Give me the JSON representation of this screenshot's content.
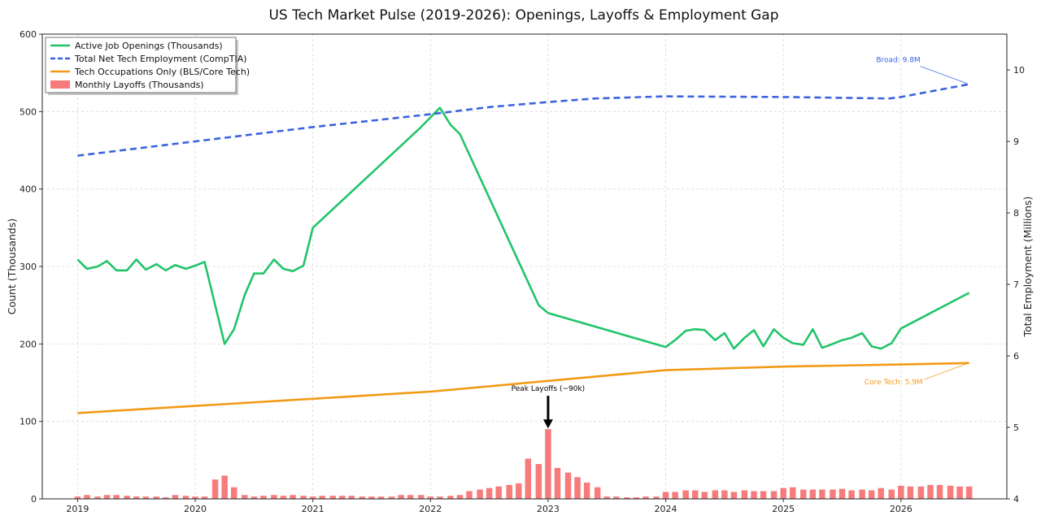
{
  "chart_data": {
    "type": "line",
    "title": "US Tech Market Pulse (2019-2026): Openings, Layoffs & Employment Gap",
    "ylabel": "Count (Thousands)",
    "ylabel_right": "Total Employment (Millions)",
    "ylim": [
      0,
      600
    ],
    "ylim_right": [
      4,
      10.5
    ],
    "xlim": [
      2018.7,
      2026.9
    ],
    "x_ticks": [
      "2019",
      "2020",
      "2021",
      "2022",
      "2023",
      "2024",
      "2025",
      "2026"
    ],
    "y_ticks": [
      "0",
      "100",
      "200",
      "300",
      "400",
      "500",
      "600"
    ],
    "y_ticks_right": [
      "4",
      "5",
      "6",
      "7",
      "8",
      "9",
      "10"
    ],
    "grid": true,
    "legend_position": "top-left",
    "colors": {
      "openings": "#22c46a",
      "net_employment": "#3b63e0",
      "core_tech": "#f29a16",
      "layoffs": "#f77b7b"
    },
    "series": [
      {
        "name": "Active Job Openings (Thousands)",
        "axis": "left",
        "style": "solid",
        "points": [
          [
            2019.0,
            309
          ],
          [
            2019.08,
            297
          ],
          [
            2019.17,
            300
          ],
          [
            2019.25,
            307
          ],
          [
            2019.33,
            295
          ],
          [
            2019.42,
            295
          ],
          [
            2019.5,
            309
          ],
          [
            2019.58,
            296
          ],
          [
            2019.67,
            303
          ],
          [
            2019.75,
            295
          ],
          [
            2019.83,
            302
          ],
          [
            2019.92,
            297
          ],
          [
            2020.0,
            301
          ],
          [
            2020.08,
            306
          ],
          [
            2020.25,
            200
          ],
          [
            2020.33,
            219
          ],
          [
            2020.42,
            263
          ],
          [
            2020.5,
            291
          ],
          [
            2020.58,
            291
          ],
          [
            2020.67,
            309
          ],
          [
            2020.75,
            297
          ],
          [
            2020.83,
            294
          ],
          [
            2020.92,
            301
          ],
          [
            2021.0,
            350
          ],
          [
            2021.92,
            480
          ],
          [
            2022.08,
            505
          ],
          [
            2022.17,
            483
          ],
          [
            2022.25,
            471
          ],
          [
            2022.92,
            250
          ],
          [
            2023.0,
            240
          ],
          [
            2024.0,
            196
          ],
          [
            2024.08,
            205
          ],
          [
            2024.17,
            217
          ],
          [
            2024.25,
            219
          ],
          [
            2024.33,
            218
          ],
          [
            2024.42,
            205
          ],
          [
            2024.5,
            214
          ],
          [
            2024.58,
            194
          ],
          [
            2024.67,
            208
          ],
          [
            2024.75,
            218
          ],
          [
            2024.83,
            197
          ],
          [
            2024.92,
            219
          ],
          [
            2025.0,
            208
          ],
          [
            2025.08,
            201
          ],
          [
            2025.17,
            199
          ],
          [
            2025.25,
            219
          ],
          [
            2025.33,
            195
          ],
          [
            2025.42,
            200
          ],
          [
            2025.5,
            205
          ],
          [
            2025.58,
            208
          ],
          [
            2025.67,
            214
          ],
          [
            2025.75,
            197
          ],
          [
            2025.83,
            194
          ],
          [
            2025.92,
            201
          ],
          [
            2026.0,
            220
          ],
          [
            2026.58,
            266
          ]
        ]
      },
      {
        "name": "Total Net Tech Employment (CompTIA)",
        "axis": "right",
        "style": "dashed",
        "points": [
          [
            2019.0,
            8.8
          ],
          [
            2020.0,
            9.0
          ],
          [
            2021.0,
            9.2
          ],
          [
            2022.0,
            9.38
          ],
          [
            2022.5,
            9.48
          ],
          [
            2023.0,
            9.55
          ],
          [
            2023.4,
            9.6
          ],
          [
            2024.0,
            9.63
          ],
          [
            2025.0,
            9.62
          ],
          [
            2025.9,
            9.6
          ],
          [
            2026.0,
            9.62
          ],
          [
            2026.58,
            9.8
          ]
        ]
      },
      {
        "name": "Tech Occupations Only (BLS/Core Tech)",
        "axis": "right",
        "style": "solid",
        "points": [
          [
            2019.0,
            5.2
          ],
          [
            2020.0,
            5.3
          ],
          [
            2021.0,
            5.4
          ],
          [
            2022.0,
            5.5
          ],
          [
            2023.0,
            5.65
          ],
          [
            2024.0,
            5.8
          ],
          [
            2025.0,
            5.85
          ],
          [
            2026.0,
            5.88
          ],
          [
            2026.58,
            5.9
          ]
        ]
      }
    ],
    "bars": {
      "name": "Monthly Layoffs (Thousands)",
      "axis": "left",
      "x": [
        2019.0,
        2019.08,
        2019.17,
        2019.25,
        2019.33,
        2019.42,
        2019.5,
        2019.58,
        2019.67,
        2019.75,
        2019.83,
        2019.92,
        2020.0,
        2020.08,
        2020.17,
        2020.25,
        2020.33,
        2020.42,
        2020.5,
        2020.58,
        2020.67,
        2020.75,
        2020.83,
        2020.92,
        2021.0,
        2021.08,
        2021.17,
        2021.25,
        2021.33,
        2021.42,
        2021.5,
        2021.58,
        2021.67,
        2021.75,
        2021.83,
        2021.92,
        2022.0,
        2022.08,
        2022.17,
        2022.25,
        2022.33,
        2022.42,
        2022.5,
        2022.58,
        2022.67,
        2022.75,
        2022.83,
        2022.92,
        2023.0,
        2023.08,
        2023.17,
        2023.25,
        2023.33,
        2023.42,
        2023.5,
        2023.58,
        2023.67,
        2023.75,
        2023.83,
        2023.92,
        2024.0,
        2024.08,
        2024.17,
        2024.25,
        2024.33,
        2024.42,
        2024.5,
        2024.58,
        2024.67,
        2024.75,
        2024.83,
        2024.92,
        2025.0,
        2025.08,
        2025.17,
        2025.25,
        2025.33,
        2025.42,
        2025.5,
        2025.58,
        2025.67,
        2025.75,
        2025.83,
        2025.92,
        2026.0,
        2026.08,
        2026.17,
        2026.25,
        2026.33,
        2026.42,
        2026.5,
        2026.58
      ],
      "values": [
        3,
        5,
        3,
        5,
        5,
        4,
        3,
        3,
        3,
        2,
        5,
        4,
        3,
        3,
        25,
        30,
        15,
        5,
        3,
        4,
        5,
        4,
        5,
        4,
        3,
        4,
        4,
        4,
        4,
        3,
        3,
        3,
        3,
        5,
        5,
        5,
        3,
        3,
        4,
        5,
        10,
        12,
        14,
        16,
        18,
        20,
        52,
        45,
        90,
        40,
        34,
        28,
        21,
        15,
        3,
        3,
        2,
        2,
        3,
        3,
        9,
        9,
        11,
        11,
        9,
        11,
        11,
        9,
        11,
        10,
        10,
        10,
        14,
        15,
        12,
        12,
        12,
        12,
        13,
        11,
        12,
        11,
        14,
        12,
        17,
        16,
        16,
        18,
        18,
        17,
        16,
        16
      ]
    },
    "annotations": [
      {
        "text": "Peak Layoffs (~90k)",
        "x": 2023.0,
        "y": 90,
        "axis": "left",
        "color": "#000000"
      },
      {
        "text": "Broad: 9.8M",
        "x": 2026.58,
        "y": 9.8,
        "axis": "right",
        "color": "#3b63e0"
      },
      {
        "text": "Core Tech: 5.9M",
        "x": 2026.58,
        "y": 5.9,
        "axis": "right",
        "color": "#f29a16"
      }
    ]
  }
}
